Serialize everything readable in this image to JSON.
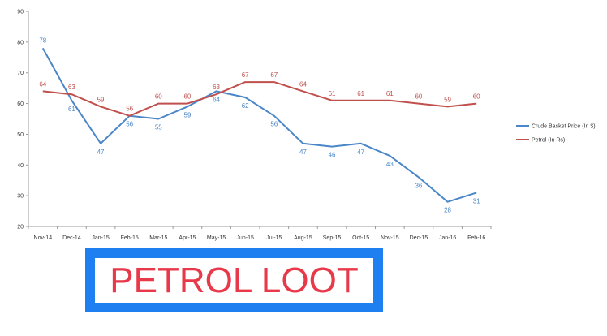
{
  "chart_data": {
    "type": "line",
    "title": "",
    "xlabel": "",
    "ylabel": "",
    "ylim": [
      20,
      90
    ],
    "yticks": [
      20,
      30,
      40,
      50,
      60,
      70,
      80,
      90
    ],
    "grid": false,
    "legend_position": "right",
    "categories": [
      "Nov-14",
      "Dec-14",
      "Jan-15",
      "Feb-15",
      "Mar-15",
      "Apr-15",
      "May-15",
      "Jun-15",
      "Jul-15",
      "Aug-15",
      "Sep-15",
      "Oct-15",
      "Nov-15",
      "Dec-15",
      "Jan-16",
      "Feb-16"
    ],
    "series": [
      {
        "name": "Crude Basket Price (In $)",
        "color": "#4a86c8",
        "values": [
          78,
          61,
          47,
          56,
          55,
          59,
          64,
          62,
          56,
          47,
          46,
          47,
          43,
          36,
          28,
          31
        ]
      },
      {
        "name": "Petrol (In Rs)",
        "color": "#c0504d",
        "values": [
          64,
          63,
          59,
          56,
          60,
          60,
          63,
          67,
          67,
          64,
          61,
          61,
          61,
          60,
          59,
          60
        ]
      }
    ]
  },
  "banner": {
    "text": "PETROL LOOT",
    "border_color": "#1e7ff0",
    "text_color": "#e8394a"
  }
}
